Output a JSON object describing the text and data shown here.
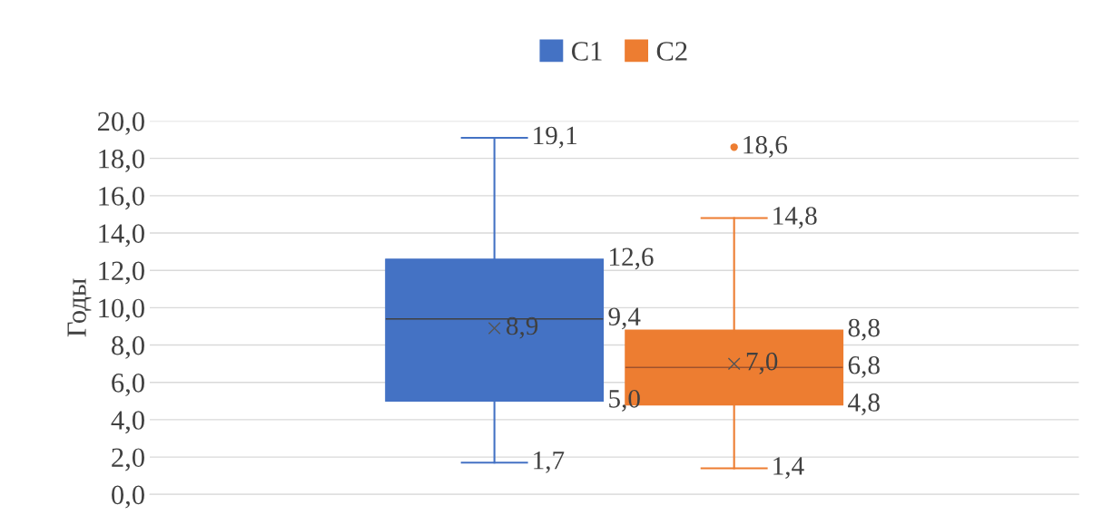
{
  "chart_data": {
    "type": "box",
    "ylabel": "Годы",
    "categories": [
      null
    ],
    "series": [
      {
        "name": "C1",
        "color": "#4472c4",
        "boxes": [
          {
            "low": 1.7,
            "q1": 5.0,
            "median": 9.4,
            "q3": 12.6,
            "high": 19.1,
            "mean": 8.9
          }
        ]
      },
      {
        "name": "C2",
        "color": "#ed7d31",
        "boxes": [
          {
            "low": 1.4,
            "q1": 4.8,
            "median": 6.8,
            "q3": 8.8,
            "high": 14.8,
            "mean": 7.0,
            "outliers": [
              18.6
            ]
          }
        ]
      }
    ],
    "annotations": [
      "19,1",
      "1,7",
      "12,6",
      "9,4",
      "5,0",
      "8,9",
      "14,8",
      "1,4",
      "8,8",
      "6,8",
      "4,8",
      "7,0",
      "18,6"
    ],
    "ylim": [
      0,
      20
    ],
    "yticks": [
      {
        "value": 0,
        "label": "0,0"
      },
      {
        "value": 2,
        "label": "2,0"
      },
      {
        "value": 4,
        "label": "4,0"
      },
      {
        "value": 6,
        "label": "6,0"
      },
      {
        "value": 8,
        "label": "8,0"
      },
      {
        "value": 10,
        "label": "10,0"
      },
      {
        "value": 12,
        "label": "12,0"
      },
      {
        "value": 14,
        "label": "14,0"
      },
      {
        "value": 16,
        "label": "16,0"
      },
      {
        "value": 18,
        "label": "18,0"
      },
      {
        "value": 20,
        "label": "20,0"
      }
    ],
    "grid": "y",
    "legend": "top",
    "marker": "cross"
  }
}
